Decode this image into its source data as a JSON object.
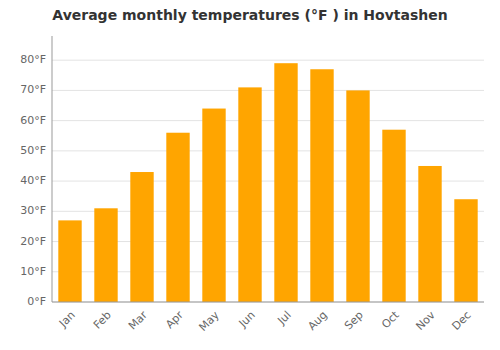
{
  "chart_data": {
    "type": "bar",
    "title": "Average monthly temperatures (°F ) in Hovtashen",
    "categories": [
      "Jan",
      "Feb",
      "Mar",
      "Apr",
      "May",
      "Jun",
      "Jul",
      "Aug",
      "Sep",
      "Oct",
      "Nov",
      "Dec"
    ],
    "values": [
      27,
      31,
      43,
      56,
      64,
      71,
      79,
      77,
      70,
      57,
      45,
      34
    ],
    "color": "#FFA500",
    "ylim": [
      0,
      88
    ],
    "yticks": [
      {
        "value": 0,
        "label": "0°F"
      },
      {
        "value": 10,
        "label": "10°F"
      },
      {
        "value": 20,
        "label": "20°F"
      },
      {
        "value": 30,
        "label": "30°F"
      },
      {
        "value": 40,
        "label": "40°F"
      },
      {
        "value": 50,
        "label": "50°F"
      },
      {
        "value": 60,
        "label": "60°F"
      },
      {
        "value": 70,
        "label": "70°F"
      },
      {
        "value": 80,
        "label": "80°F"
      }
    ],
    "grid": true
  }
}
